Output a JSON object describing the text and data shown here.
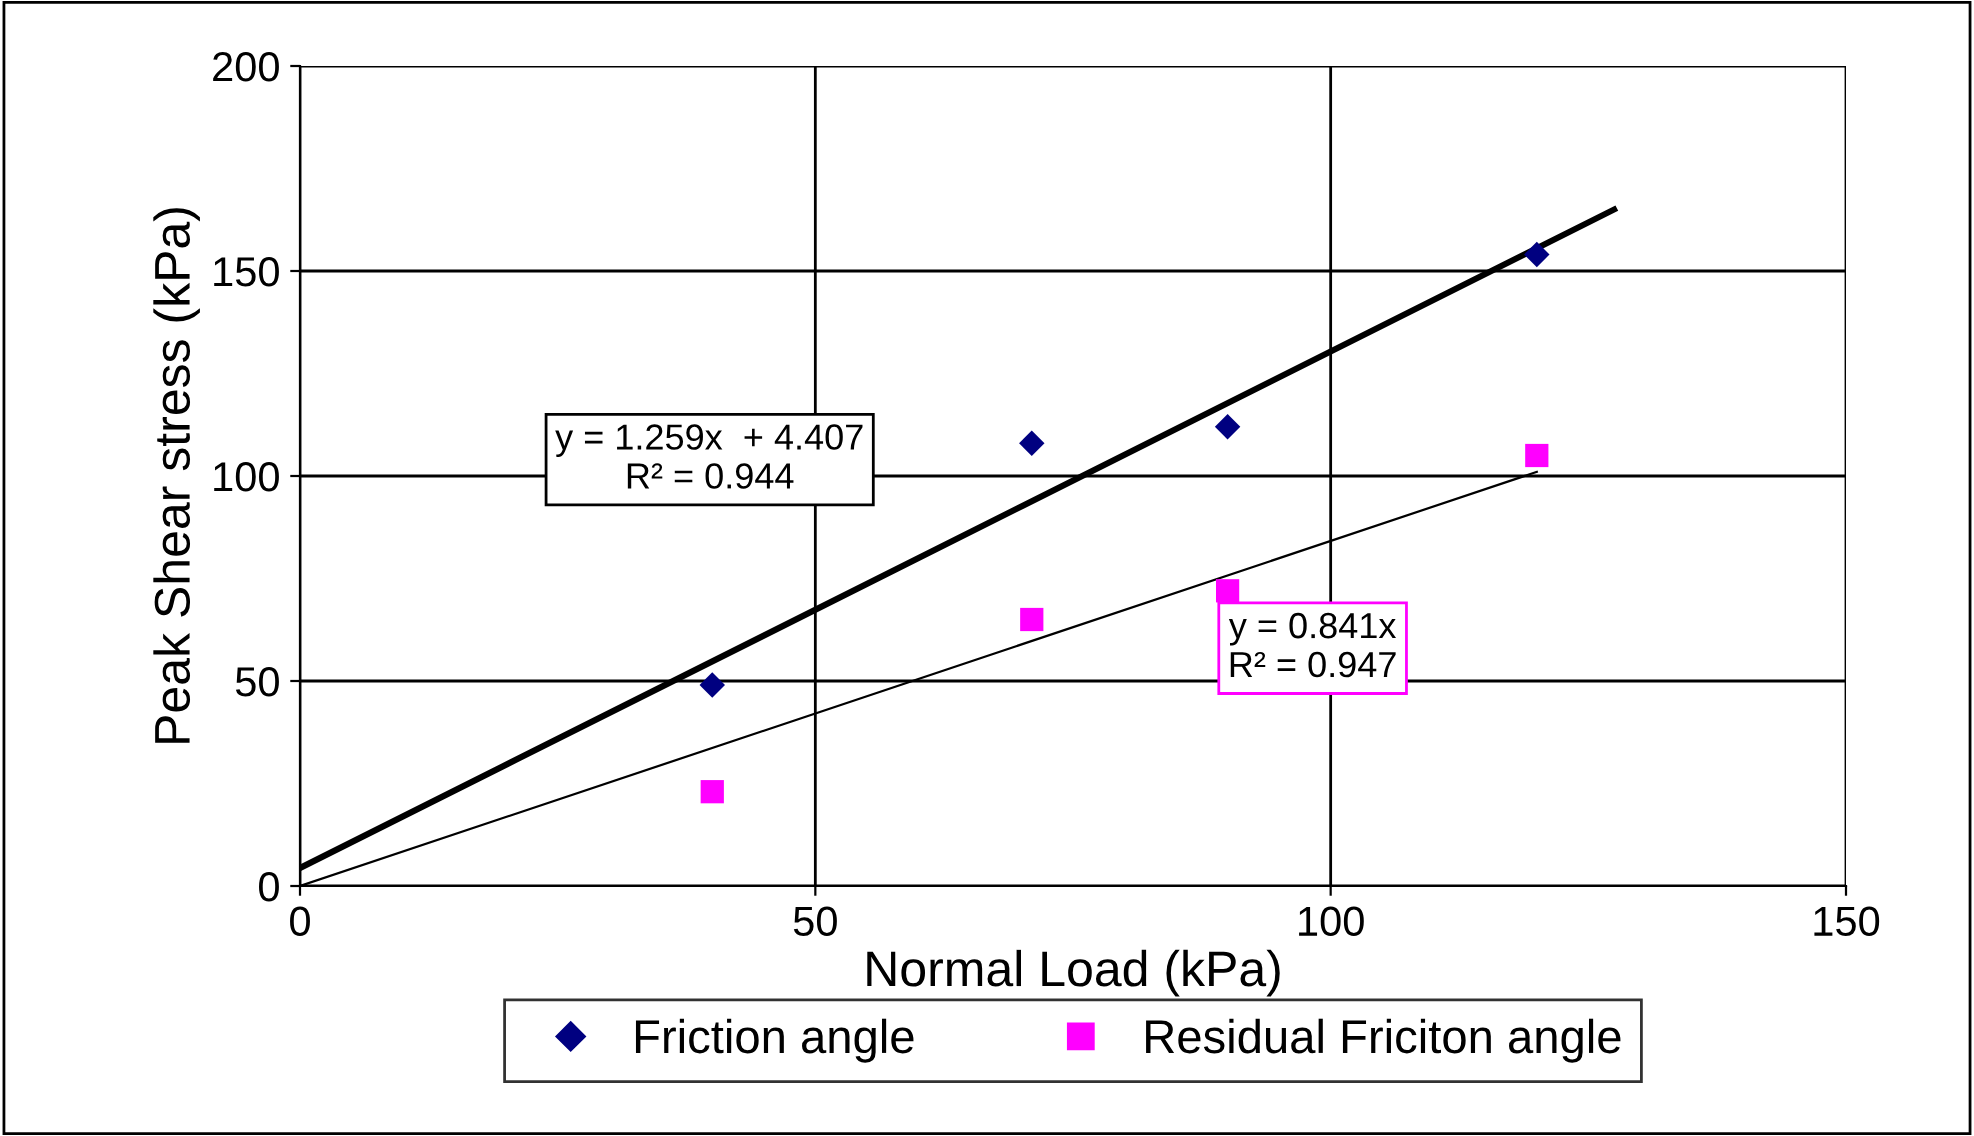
{
  "chart_data": {
    "type": "scatter",
    "xlabel": "Normal Load (kPa)",
    "ylabel": "Peak Shear stress (kPa)",
    "xlim": [
      0,
      150
    ],
    "xticks": [
      0,
      50,
      100,
      150
    ],
    "ylim": [
      0,
      200
    ],
    "yticks": [
      0,
      50,
      100,
      150,
      200
    ],
    "grid": true,
    "legend": "bottom",
    "series": [
      {
        "name": "Friction angle",
        "marker": "diamond",
        "color": "#000080",
        "x": [
          40,
          71,
          90,
          120
        ],
        "values": [
          49,
          108,
          112,
          154
        ]
      },
      {
        "name": "Residual Friciton angle",
        "marker": "square",
        "color": "#ff00ff",
        "x": [
          40,
          71,
          90,
          120
        ],
        "values": [
          23,
          65,
          72,
          105
        ]
      },
      {
        "type": "line",
        "color": "#000000",
        "x": [
          0,
          127.5
        ],
        "values": [
          4.4,
          165
        ]
      },
      {
        "type": "line",
        "color": "#000000",
        "x": [
          0,
          120
        ],
        "values": [
          0,
          101
        ]
      }
    ],
    "annotations": [
      "y = 1.259x  + 4.407\nR² = 0.944",
      "y = 0.841x\nR² = 0.947"
    ]
  }
}
